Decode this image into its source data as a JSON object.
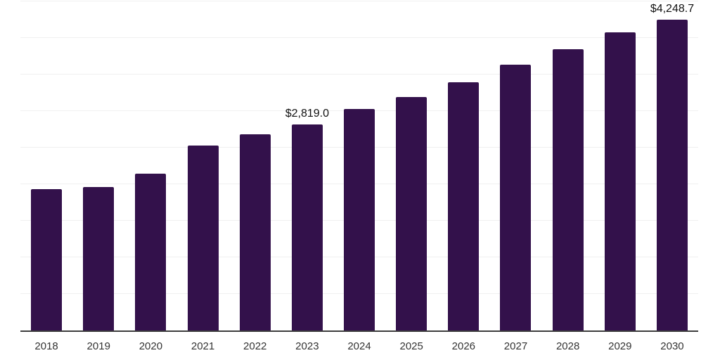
{
  "chart_data": {
    "type": "bar",
    "title": "",
    "xlabel": "",
    "ylabel": "",
    "categories": [
      "2018",
      "2019",
      "2020",
      "2021",
      "2022",
      "2023",
      "2024",
      "2025",
      "2026",
      "2027",
      "2028",
      "2029",
      "2030"
    ],
    "values": [
      1930,
      1960,
      2145,
      2530,
      2685,
      2819.0,
      3025,
      3195,
      3395,
      3630,
      3845,
      4080,
      4248.7
    ],
    "data_labels": {
      "2023": "$2,819.0",
      "2030": "$4,248.7"
    },
    "ylim": [
      0,
      4500
    ],
    "gridline_step": 500,
    "grid": true,
    "legend": false,
    "y_axis_tick_labels_visible": false,
    "bar_color": "#33114b",
    "axis_line_color": "#3d3d3d",
    "gridline_color": "#f0f0f0",
    "data_label_color": "#111111",
    "tick_label_color": "#333333",
    "background_color": "#ffffff"
  }
}
